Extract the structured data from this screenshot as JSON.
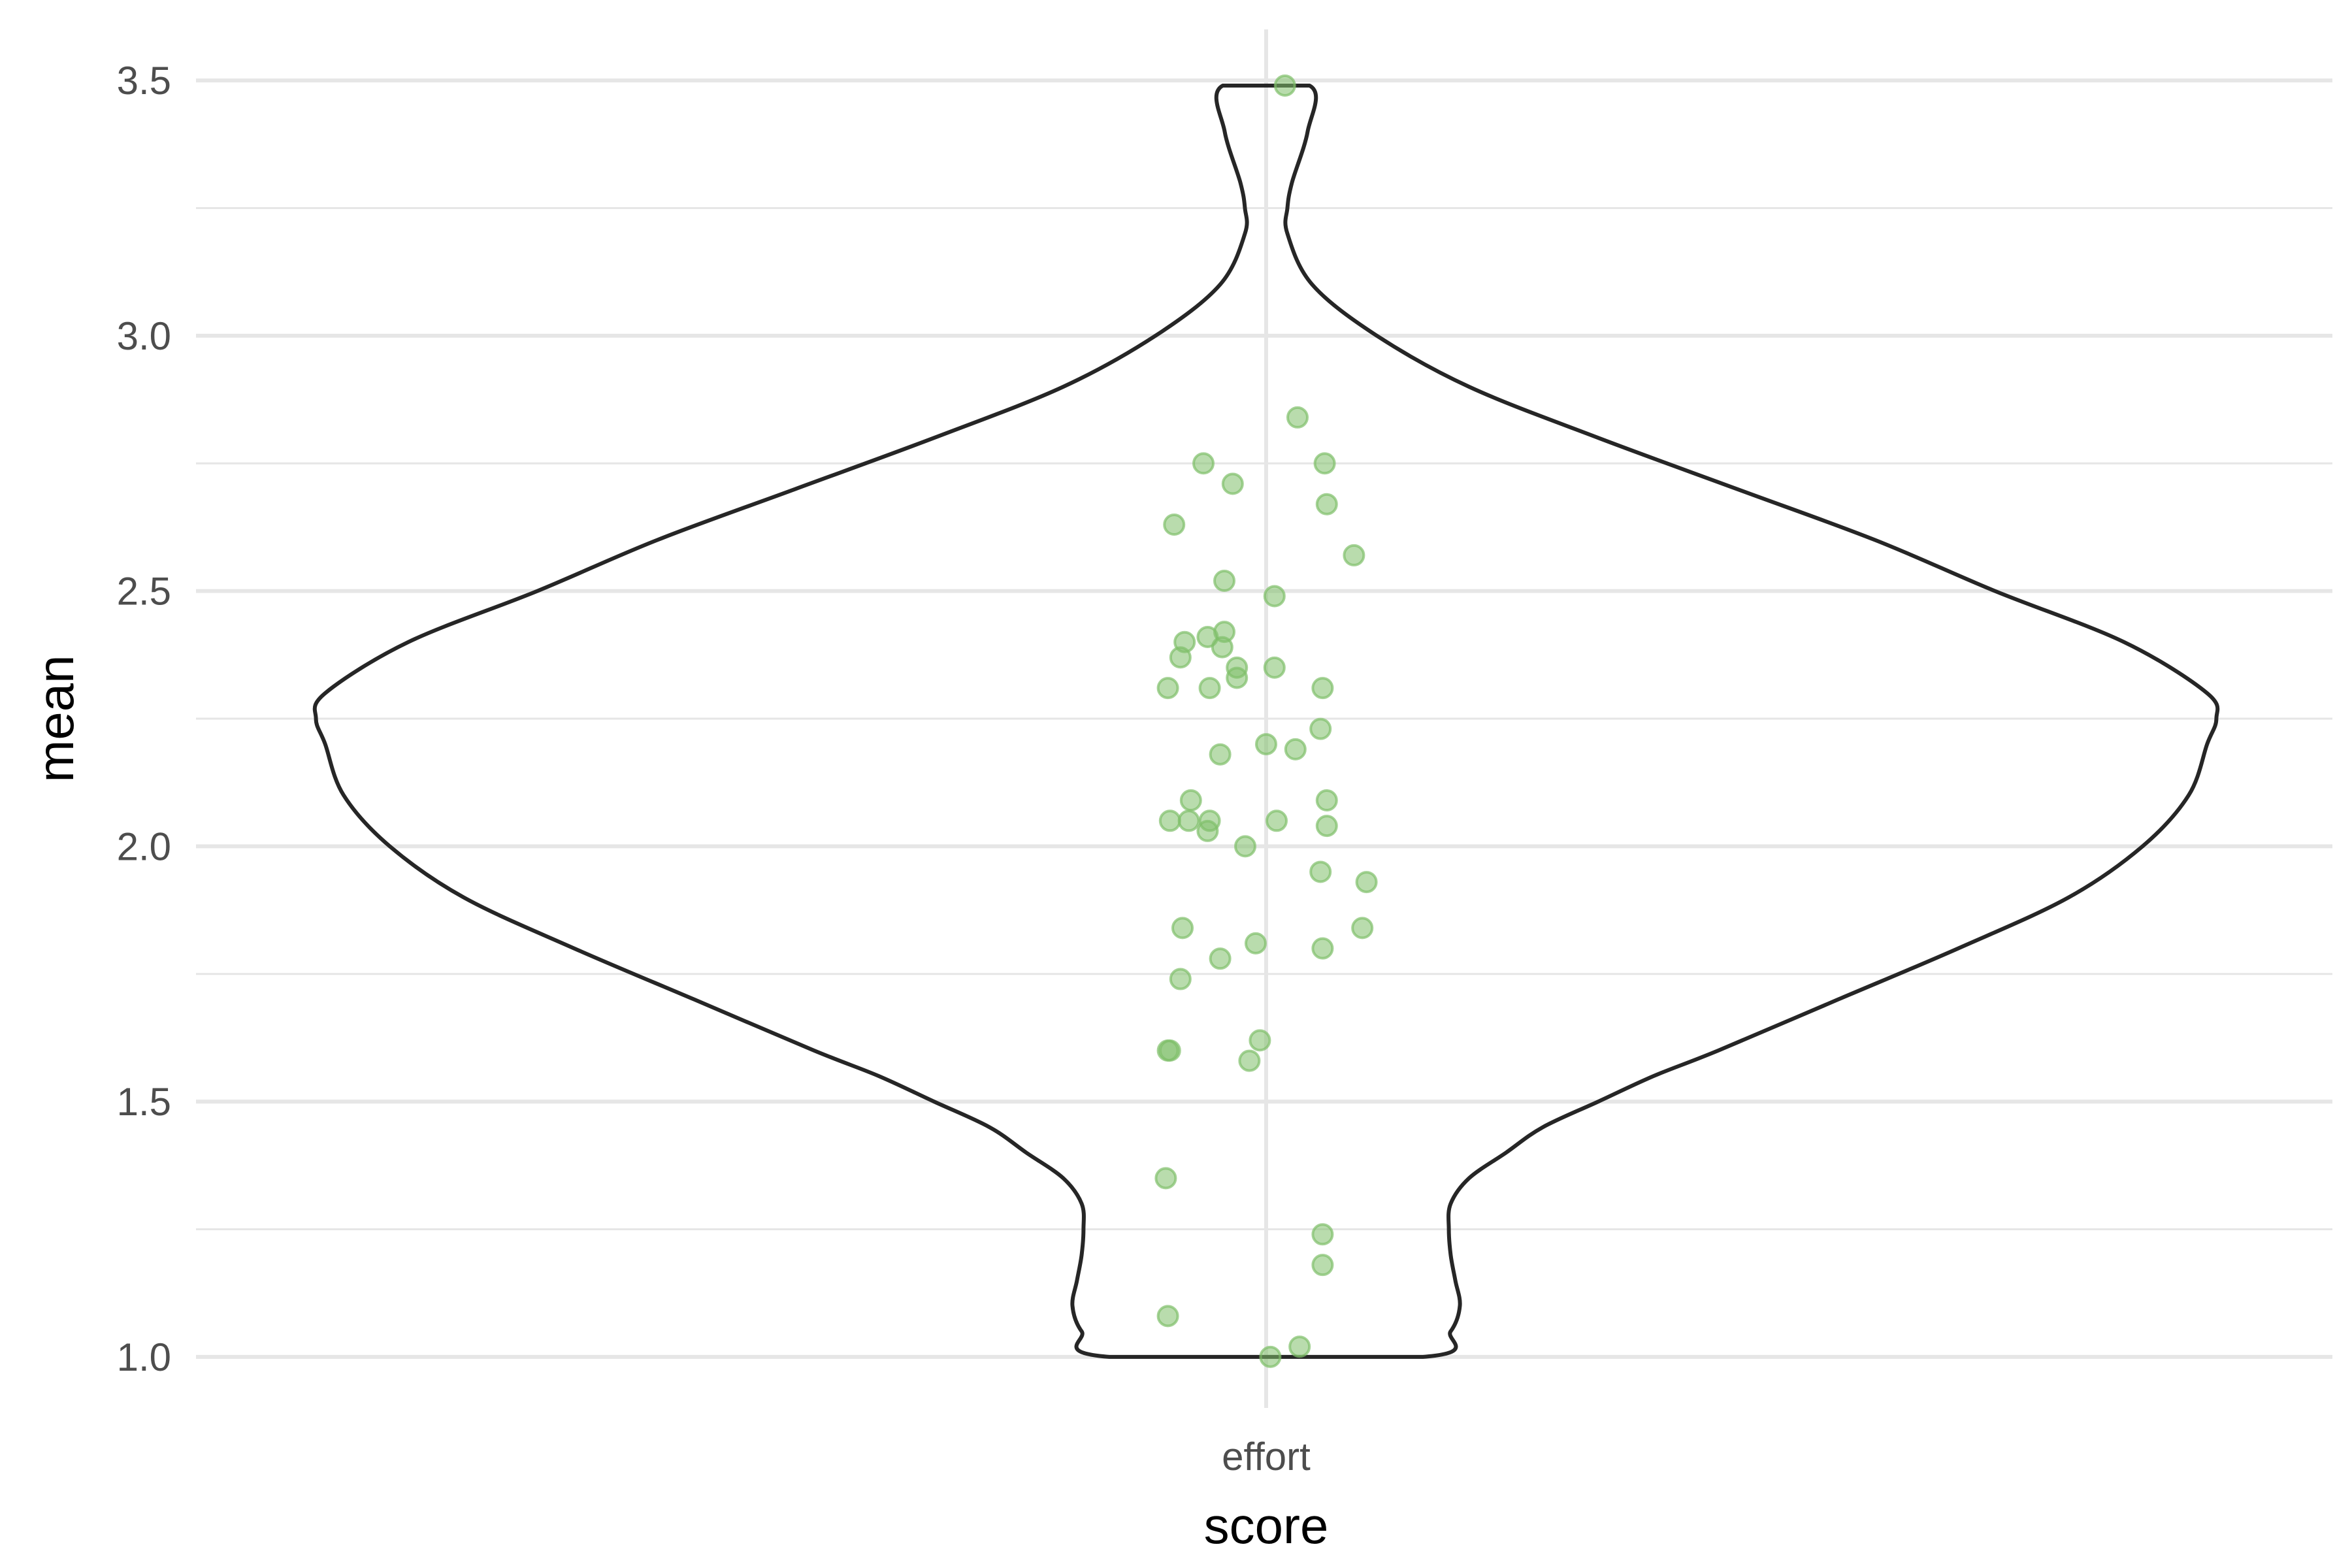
{
  "chart_data": {
    "type": "violin",
    "xlabel": "score",
    "ylabel": "mean",
    "categories": [
      "effort"
    ],
    "ylim": [
      0.9,
      3.6
    ],
    "yticks": [
      "1.0",
      "1.5",
      "2.0",
      "2.5",
      "3.0",
      "3.5"
    ],
    "grid": true,
    "colors": {
      "violin_outline": "#262626",
      "points": "#7fbf6a",
      "grid": "#e6e6e6",
      "tick_label": "#4d4d4d"
    },
    "violin": {
      "category": "effort",
      "y_min": 1.0,
      "y_max": 3.49,
      "density": [
        [
          1.0,
          0.17
        ],
        [
          1.05,
          0.2
        ],
        [
          1.1,
          0.21
        ],
        [
          1.15,
          0.205
        ],
        [
          1.2,
          0.2
        ],
        [
          1.25,
          0.198
        ],
        [
          1.3,
          0.2
        ],
        [
          1.35,
          0.22
        ],
        [
          1.4,
          0.26
        ],
        [
          1.45,
          0.3
        ],
        [
          1.5,
          0.36
        ],
        [
          1.55,
          0.42
        ],
        [
          1.6,
          0.49
        ],
        [
          1.7,
          0.62
        ],
        [
          1.8,
          0.75
        ],
        [
          1.9,
          0.87
        ],
        [
          2.0,
          0.95
        ],
        [
          2.1,
          1.0
        ],
        [
          2.2,
          1.02
        ],
        [
          2.25,
          1.03
        ],
        [
          2.3,
          1.02
        ],
        [
          2.4,
          0.93
        ],
        [
          2.5,
          0.79
        ],
        [
          2.6,
          0.66
        ],
        [
          2.7,
          0.51
        ],
        [
          2.8,
          0.36
        ],
        [
          2.9,
          0.22
        ],
        [
          3.0,
          0.12
        ],
        [
          3.1,
          0.05
        ],
        [
          3.2,
          0.023
        ],
        [
          3.25,
          0.023
        ],
        [
          3.3,
          0.028
        ],
        [
          3.4,
          0.045
        ],
        [
          3.49,
          0.047
        ]
      ]
    },
    "points": [
      {
        "jitter": 0.09,
        "y": 3.49
      },
      {
        "jitter": 0.15,
        "y": 2.84
      },
      {
        "jitter": -0.3,
        "y": 2.75
      },
      {
        "jitter": 0.28,
        "y": 2.75
      },
      {
        "jitter": -0.16,
        "y": 2.71
      },
      {
        "jitter": -0.44,
        "y": 2.63
      },
      {
        "jitter": 0.29,
        "y": 2.67
      },
      {
        "jitter": 0.42,
        "y": 2.57
      },
      {
        "jitter": -0.2,
        "y": 2.52
      },
      {
        "jitter": 0.04,
        "y": 2.49
      },
      {
        "jitter": -0.28,
        "y": 2.41
      },
      {
        "jitter": -0.39,
        "y": 2.4
      },
      {
        "jitter": -0.2,
        "y": 2.42
      },
      {
        "jitter": -0.21,
        "y": 2.39
      },
      {
        "jitter": -0.41,
        "y": 2.37
      },
      {
        "jitter": -0.14,
        "y": 2.35
      },
      {
        "jitter": -0.14,
        "y": 2.33
      },
      {
        "jitter": 0.04,
        "y": 2.35
      },
      {
        "jitter": -0.47,
        "y": 2.31
      },
      {
        "jitter": -0.27,
        "y": 2.31
      },
      {
        "jitter": 0.27,
        "y": 2.31
      },
      {
        "jitter": 0.26,
        "y": 2.23
      },
      {
        "jitter": 0.0,
        "y": 2.2
      },
      {
        "jitter": 0.14,
        "y": 2.19
      },
      {
        "jitter": -0.22,
        "y": 2.18
      },
      {
        "jitter": -0.36,
        "y": 2.09
      },
      {
        "jitter": 0.29,
        "y": 2.09
      },
      {
        "jitter": -0.46,
        "y": 2.05
      },
      {
        "jitter": -0.37,
        "y": 2.05
      },
      {
        "jitter": -0.27,
        "y": 2.05
      },
      {
        "jitter": 0.05,
        "y": 2.05
      },
      {
        "jitter": 0.29,
        "y": 2.04
      },
      {
        "jitter": -0.28,
        "y": 2.03
      },
      {
        "jitter": -0.1,
        "y": 2.0
      },
      {
        "jitter": 0.48,
        "y": 1.93
      },
      {
        "jitter": 0.26,
        "y": 1.95
      },
      {
        "jitter": -0.4,
        "y": 1.84
      },
      {
        "jitter": 0.46,
        "y": 1.84
      },
      {
        "jitter": -0.05,
        "y": 1.81
      },
      {
        "jitter": 0.27,
        "y": 1.8
      },
      {
        "jitter": -0.22,
        "y": 1.78
      },
      {
        "jitter": -0.41,
        "y": 1.74
      },
      {
        "jitter": -0.03,
        "y": 1.62
      },
      {
        "jitter": -0.47,
        "y": 1.6
      },
      {
        "jitter": -0.46,
        "y": 1.6
      },
      {
        "jitter": -0.08,
        "y": 1.58
      },
      {
        "jitter": -0.48,
        "y": 1.35
      },
      {
        "jitter": 0.27,
        "y": 1.24
      },
      {
        "jitter": 0.27,
        "y": 1.18
      },
      {
        "jitter": -0.47,
        "y": 1.08
      },
      {
        "jitter": 0.16,
        "y": 1.02
      },
      {
        "jitter": 0.02,
        "y": 1.0
      }
    ]
  }
}
